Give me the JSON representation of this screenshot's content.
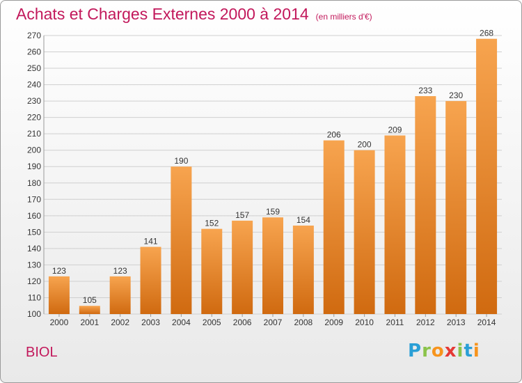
{
  "title": "Achats et Charges Externes 2000 à 2014",
  "subtitle": "(en milliers d'€)",
  "place": "BIOL",
  "brand": {
    "letters": [
      "P",
      "r",
      "o",
      "x",
      "i",
      "t",
      "i"
    ],
    "colors": [
      "#2a9fd6",
      "#8bc34a",
      "#f7941d",
      "#e53935",
      "#8bc34a",
      "#2a9fd6",
      "#f7941d"
    ]
  },
  "colors": {
    "bar_top": "#f7a44f",
    "bar_bottom": "#d06a10",
    "accent": "#c2185b"
  },
  "chart_data": {
    "type": "bar",
    "title": "Achats et Charges Externes 2000 à 2014",
    "subtitle": "(en milliers d'€)",
    "categories": [
      "2000",
      "2001",
      "2002",
      "2003",
      "2004",
      "2005",
      "2006",
      "2007",
      "2008",
      "2009",
      "2010",
      "2011",
      "2012",
      "2013",
      "2014"
    ],
    "values": [
      123,
      105,
      123,
      141,
      190,
      152,
      157,
      159,
      154,
      206,
      200,
      209,
      233,
      230,
      268
    ],
    "ylim": [
      100,
      270
    ],
    "yticks": [
      100,
      110,
      120,
      130,
      140,
      150,
      160,
      170,
      180,
      190,
      200,
      210,
      220,
      230,
      240,
      250,
      260,
      270
    ],
    "grid": true,
    "data_labels": true
  }
}
